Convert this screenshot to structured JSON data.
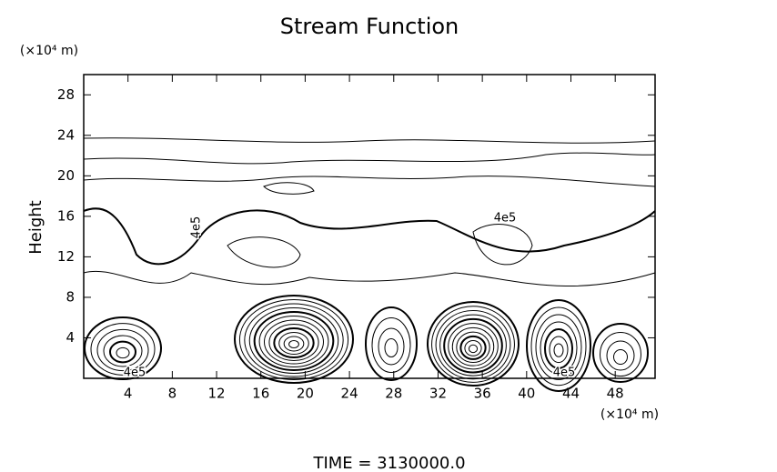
{
  "chart_data": {
    "type": "contour",
    "title": "Stream Function",
    "ylabel": "Height",
    "yunit": "(×10⁴ m)",
    "xunit": "(×10⁴ m)",
    "footer": "TIME = 3130000.0",
    "xlim": [
      0,
      51.6
    ],
    "ylim": [
      0,
      30
    ],
    "xticks": [
      4,
      8,
      12,
      16,
      20,
      24,
      28,
      32,
      36,
      40,
      44,
      48
    ],
    "yticks": [
      4,
      8,
      12,
      16,
      20,
      24,
      28
    ],
    "annotations": [
      "4e5",
      "4e5",
      "4e5",
      "4e5"
    ]
  }
}
